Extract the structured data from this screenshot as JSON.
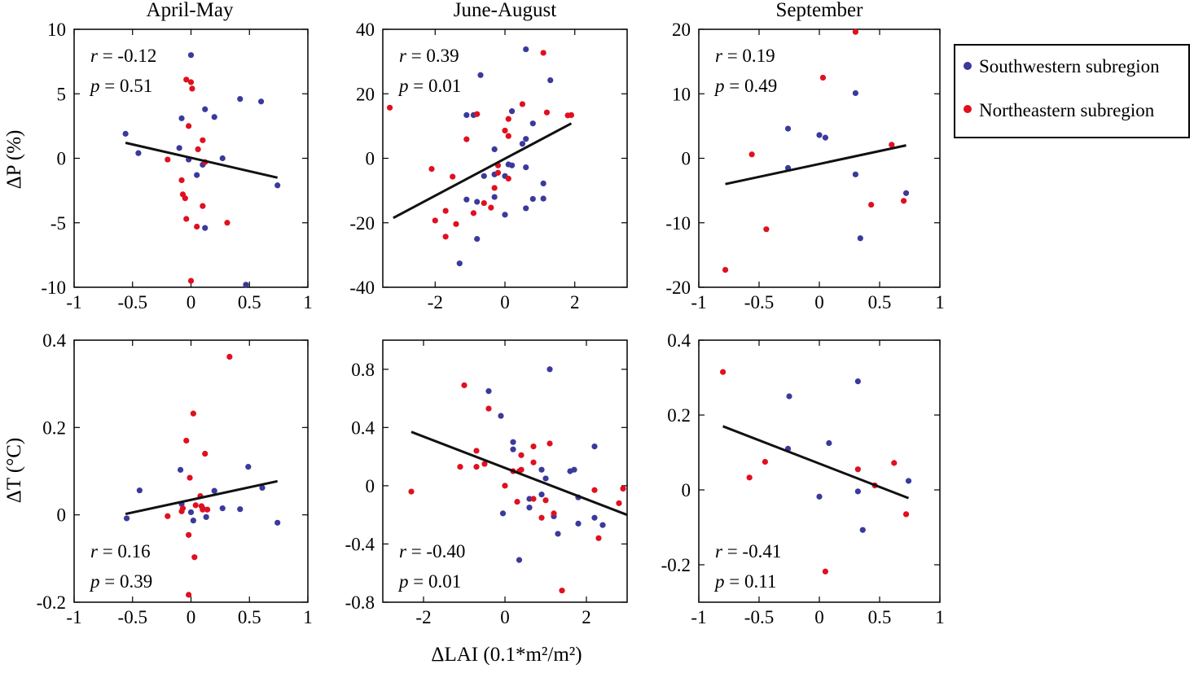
{
  "colors": {
    "southwest": "#3a3a9c",
    "northeast": "#e0101e",
    "fit": "#111111"
  },
  "legend": {
    "entries": [
      "Southwestern subregion",
      "Northeastern  subregion"
    ],
    "placement": "right"
  },
  "titles": {
    "col1": "April-May",
    "col2": "June-August",
    "col3": "September"
  },
  "ylabels": {
    "top": "ΔP (%)",
    "bottom": "ΔT (°C)"
  },
  "xlabel": "ΔLAI (0.1*m²/m²)",
  "chart_data": [
    {
      "type": "scatter",
      "title": "April-May",
      "ylabel": "ΔP (%)",
      "xlim": [
        -1,
        1
      ],
      "ylim": [
        -10,
        10
      ],
      "xticks": [
        -1,
        -0.5,
        0,
        0.5,
        1
      ],
      "xtick_labels": [
        "-1",
        "-0.5",
        "0",
        "0.5",
        "1"
      ],
      "yticks": [
        -10,
        -5,
        0,
        5,
        10
      ],
      "ytick_labels": [
        "-10",
        "-5",
        "0",
        "5",
        "10"
      ],
      "r_text": "r",
      "r_value": "= -0.12",
      "p_text": "p",
      "p_value": "= 0.51",
      "stats_pos": "top",
      "fit": [
        [
          -0.56,
          1.2
        ],
        [
          0.74,
          -1.5
        ]
      ],
      "series": [
        {
          "name": "Southwestern subregion",
          "color": "#3a3a9c",
          "points": [
            [
              -0.56,
              1.9
            ],
            [
              -0.45,
              0.4
            ],
            [
              -0.1,
              0.8
            ],
            [
              -0.08,
              3.1
            ],
            [
              0.0,
              8.0
            ],
            [
              -0.02,
              -0.1
            ],
            [
              0.05,
              -1.3
            ],
            [
              0.1,
              -0.5
            ],
            [
              0.12,
              3.8
            ],
            [
              0.2,
              3.2
            ],
            [
              0.27,
              0.0
            ],
            [
              0.42,
              4.6
            ],
            [
              0.6,
              4.4
            ],
            [
              0.12,
              -5.4
            ],
            [
              0.47,
              -9.8
            ],
            [
              0.74,
              -2.1
            ]
          ]
        },
        {
          "name": "Northeastern  subregion",
          "color": "#e0101e",
          "points": [
            [
              -0.2,
              -0.1
            ],
            [
              -0.04,
              6.1
            ],
            [
              0.0,
              5.9
            ],
            [
              0.01,
              5.4
            ],
            [
              -0.02,
              2.5
            ],
            [
              0.1,
              1.4
            ],
            [
              0.06,
              0.7
            ],
            [
              0.12,
              -0.3
            ],
            [
              -0.08,
              -1.7
            ],
            [
              -0.07,
              -2.8
            ],
            [
              -0.05,
              -3.1
            ],
            [
              0.1,
              -3.7
            ],
            [
              -0.04,
              -4.7
            ],
            [
              0.05,
              -5.3
            ],
            [
              0.31,
              -5.0
            ],
            [
              0.0,
              -9.5
            ]
          ]
        }
      ]
    },
    {
      "type": "scatter",
      "title": "June-August",
      "xlim": [
        -3.5,
        3.5
      ],
      "ylim": [
        -40,
        40
      ],
      "xticks": [
        -2,
        0,
        2
      ],
      "xtick_labels": [
        "-2",
        "0",
        "2"
      ],
      "yticks": [
        -40,
        -20,
        0,
        20,
        40
      ],
      "ytick_labels": [
        "-40",
        "-20",
        "0",
        "20",
        "40"
      ],
      "r_text": "r",
      "r_value": "= 0.39",
      "p_text": "p",
      "p_value": "= 0.01",
      "stats_pos": "top",
      "fit": [
        [
          -3.2,
          -18.5
        ],
        [
          1.9,
          10.8
        ]
      ],
      "series": [
        {
          "name": "Southwestern subregion",
          "color": "#3a3a9c",
          "points": [
            [
              -0.7,
              25.8
            ],
            [
              0.6,
              33.8
            ],
            [
              1.3,
              24.2
            ],
            [
              -0.9,
              13.4
            ],
            [
              -1.1,
              13.4
            ],
            [
              0.2,
              14.6
            ],
            [
              0.8,
              10.8
            ],
            [
              0.6,
              6.0
            ],
            [
              0.5,
              4.5
            ],
            [
              -0.3,
              2.8
            ],
            [
              0.2,
              -2.2
            ],
            [
              0.1,
              -1.9
            ],
            [
              0.0,
              -5.5
            ],
            [
              0.6,
              -2.8
            ],
            [
              -0.3,
              -5.0
            ],
            [
              -0.6,
              -5.5
            ],
            [
              -0.3,
              -12.0
            ],
            [
              -1.1,
              -12.8
            ],
            [
              -0.8,
              -13.5
            ],
            [
              0.0,
              -17.5
            ],
            [
              0.6,
              -15.5
            ],
            [
              0.8,
              -12.6
            ],
            [
              1.1,
              -12.5
            ],
            [
              1.1,
              -7.8
            ],
            [
              -0.8,
              -25.0
            ],
            [
              -1.3,
              -32.6
            ]
          ]
        },
        {
          "name": "Northeastern  subregion",
          "color": "#e0101e",
          "points": [
            [
              -3.3,
              15.7
            ],
            [
              1.1,
              32.7
            ],
            [
              0.5,
              16.8
            ],
            [
              1.2,
              14.2
            ],
            [
              1.8,
              13.3
            ],
            [
              1.9,
              13.4
            ],
            [
              -0.8,
              13.7
            ],
            [
              0.1,
              12.2
            ],
            [
              0.1,
              6.9
            ],
            [
              0.0,
              8.6
            ],
            [
              -1.1,
              5.9
            ],
            [
              -2.1,
              -3.3
            ],
            [
              -1.5,
              -5.7
            ],
            [
              -0.2,
              -2.2
            ],
            [
              -0.2,
              -4.5
            ],
            [
              0.1,
              -6.3
            ],
            [
              -0.3,
              -9.2
            ],
            [
              -0.6,
              -13.9
            ],
            [
              -0.4,
              -15.3
            ],
            [
              -0.9,
              -17.0
            ],
            [
              -1.4,
              -20.4
            ],
            [
              -1.7,
              -16.3
            ],
            [
              -2.0,
              -19.3
            ],
            [
              -1.7,
              -24.3
            ]
          ]
        }
      ]
    },
    {
      "type": "scatter",
      "title": "September",
      "xlim": [
        -1,
        1
      ],
      "ylim": [
        -20,
        20
      ],
      "xticks": [
        -1,
        -0.5,
        0,
        0.5,
        1
      ],
      "xtick_labels": [
        "-1",
        "-0.5",
        "0",
        "0.5",
        "1"
      ],
      "yticks": [
        -20,
        -10,
        0,
        10,
        20
      ],
      "ytick_labels": [
        "-20",
        "-10",
        "0",
        "10",
        "20"
      ],
      "r_text": "r",
      "r_value": "= 0.19",
      "p_text": "p",
      "p_value": "= 0.49",
      "stats_pos": "top",
      "fit": [
        [
          -0.78,
          -4.0
        ],
        [
          0.72,
          2.0
        ]
      ],
      "series": [
        {
          "name": "Southwestern subregion",
          "color": "#3a3a9c",
          "points": [
            [
              -0.26,
              4.6
            ],
            [
              0.0,
              3.6
            ],
            [
              0.05,
              3.2
            ],
            [
              0.3,
              10.1
            ],
            [
              -0.26,
              -1.5
            ],
            [
              0.3,
              -2.5
            ],
            [
              0.34,
              -12.4
            ],
            [
              0.72,
              -5.4
            ]
          ]
        },
        {
          "name": "Northeastern  subregion",
          "color": "#e0101e",
          "points": [
            [
              -0.78,
              -17.3
            ],
            [
              -0.56,
              0.6
            ],
            [
              -0.44,
              -11.0
            ],
            [
              0.03,
              12.5
            ],
            [
              0.3,
              19.6
            ],
            [
              0.43,
              -7.2
            ],
            [
              0.6,
              2.1
            ],
            [
              0.7,
              -6.6
            ]
          ]
        }
      ]
    },
    {
      "type": "scatter",
      "ylabel": "ΔT (°C)",
      "xlim": [
        -1,
        1
      ],
      "ylim": [
        -0.2,
        0.4
      ],
      "xticks": [
        -1,
        -0.5,
        0,
        0.5,
        1
      ],
      "xtick_labels": [
        "-1",
        "-0.5",
        "0",
        "0.5",
        "1"
      ],
      "yticks": [
        -0.2,
        0,
        0.2,
        0.4
      ],
      "ytick_labels": [
        "-0.2",
        "0",
        "0.2",
        "0.4"
      ],
      "r_text": "r",
      "r_value": "= 0.16",
      "p_text": "p",
      "p_value": "= 0.39",
      "stats_pos": "bottom",
      "fit": [
        [
          -0.56,
          0.002
        ],
        [
          0.74,
          0.077
        ]
      ],
      "series": [
        {
          "name": "Southwestern subregion",
          "color": "#3a3a9c",
          "points": [
            [
              -0.55,
              -0.008
            ],
            [
              -0.44,
              0.056
            ],
            [
              -0.09,
              0.103
            ],
            [
              -0.08,
              0.025
            ],
            [
              0.0,
              0.006
            ],
            [
              0.02,
              -0.013
            ],
            [
              0.1,
              0.015
            ],
            [
              0.13,
              -0.005
            ],
            [
              0.2,
              0.055
            ],
            [
              0.27,
              0.015
            ],
            [
              0.42,
              0.013
            ],
            [
              0.49,
              0.11
            ],
            [
              0.61,
              0.062
            ],
            [
              0.74,
              -0.018
            ]
          ]
        },
        {
          "name": "Northeastern  subregion",
          "color": "#e0101e",
          "points": [
            [
              0.33,
              0.362
            ],
            [
              0.02,
              0.232
            ],
            [
              -0.04,
              0.17
            ],
            [
              0.12,
              0.14
            ],
            [
              -0.01,
              0.085
            ],
            [
              0.08,
              0.043
            ],
            [
              0.04,
              0.022
            ],
            [
              0.09,
              0.02
            ],
            [
              0.1,
              0.012
            ],
            [
              0.14,
              0.012
            ],
            [
              -0.08,
              0.008
            ],
            [
              -0.2,
              -0.003
            ],
            [
              -0.07,
              0.015
            ],
            [
              -0.02,
              -0.046
            ],
            [
              0.03,
              -0.097
            ],
            [
              -0.02,
              -0.183
            ]
          ]
        }
      ]
    },
    {
      "type": "scatter",
      "xlim": [
        -3,
        3
      ],
      "ylim": [
        -0.8,
        1.0
      ],
      "xticks": [
        -2,
        0,
        2
      ],
      "xtick_labels": [
        "-2",
        "0",
        "2"
      ],
      "yticks": [
        -0.8,
        -0.4,
        0,
        0.4,
        0.8
      ],
      "ytick_labels": [
        "-0.8",
        "-0.4",
        "0",
        "0.4",
        "0.8"
      ],
      "r_text": "r",
      "r_value": "= -0.40",
      "p_text": "p",
      "p_value": "= 0.01",
      "stats_pos": "bottom",
      "fit": [
        [
          -2.3,
          0.37
        ],
        [
          3.0,
          -0.2
        ]
      ],
      "series": [
        {
          "name": "Southwestern subregion",
          "color": "#3a3a9c",
          "points": [
            [
              1.1,
              0.8
            ],
            [
              -0.4,
              0.65
            ],
            [
              -0.1,
              0.48
            ],
            [
              0.2,
              0.3
            ],
            [
              0.2,
              0.25
            ],
            [
              0.9,
              0.11
            ],
            [
              1.6,
              0.1
            ],
            [
              1.0,
              0.05
            ],
            [
              1.7,
              0.11
            ],
            [
              2.2,
              0.27
            ],
            [
              1.8,
              -0.08
            ],
            [
              0.9,
              -0.06
            ],
            [
              0.6,
              -0.09
            ],
            [
              0.6,
              -0.15
            ],
            [
              1.2,
              -0.21
            ],
            [
              -0.05,
              -0.19
            ],
            [
              1.8,
              -0.26
            ],
            [
              2.2,
              -0.22
            ],
            [
              2.4,
              -0.27
            ],
            [
              1.3,
              -0.33
            ],
            [
              0.35,
              -0.51
            ]
          ]
        },
        {
          "name": "Northeastern  subregion",
          "color": "#e0101e",
          "points": [
            [
              -1.0,
              0.69
            ],
            [
              -0.4,
              0.53
            ],
            [
              1.1,
              0.29
            ],
            [
              0.7,
              0.27
            ],
            [
              0.4,
              0.21
            ],
            [
              -0.7,
              0.24
            ],
            [
              -0.5,
              0.15
            ],
            [
              -0.7,
              0.13
            ],
            [
              -1.1,
              0.13
            ],
            [
              0.7,
              0.16
            ],
            [
              0.2,
              0.1
            ],
            [
              0.4,
              0.11
            ],
            [
              0.35,
              0.1
            ],
            [
              0.0,
              0.0
            ],
            [
              -2.3,
              -0.04
            ],
            [
              2.2,
              -0.03
            ],
            [
              2.9,
              -0.02
            ],
            [
              0.7,
              -0.09
            ],
            [
              1.0,
              -0.1
            ],
            [
              0.3,
              -0.11
            ],
            [
              1.2,
              -0.19
            ],
            [
              0.9,
              -0.22
            ],
            [
              2.8,
              -0.12
            ],
            [
              2.3,
              -0.36
            ],
            [
              1.4,
              -0.72
            ]
          ]
        }
      ]
    },
    {
      "type": "scatter",
      "xlim": [
        -1,
        1
      ],
      "ylim": [
        -0.3,
        0.4
      ],
      "xticks": [
        -1,
        -0.5,
        0,
        0.5,
        1
      ],
      "xtick_labels": [
        "-1",
        "-0.5",
        "0",
        "0.5",
        "1"
      ],
      "yticks": [
        -0.2,
        0,
        0.2,
        0.4
      ],
      "ytick_labels": [
        "-0.2",
        "0",
        "0.2",
        "0.4"
      ],
      "r_text": "r",
      "r_value": "= -0.41",
      "p_text": "p",
      "p_value": "= 0.11",
      "stats_pos": "bottom",
      "fit": [
        [
          -0.8,
          0.17
        ],
        [
          0.74,
          -0.022
        ]
      ],
      "series": [
        {
          "name": "Southwestern subregion",
          "color": "#3a3a9c",
          "points": [
            [
              -0.25,
              0.25
            ],
            [
              0.32,
              0.29
            ],
            [
              -0.26,
              0.11
            ],
            [
              0.08,
              0.125
            ],
            [
              0.0,
              -0.018
            ],
            [
              0.32,
              -0.004
            ],
            [
              0.36,
              -0.107
            ],
            [
              0.74,
              0.024
            ]
          ]
        },
        {
          "name": "Northeastern  subregion",
          "color": "#e0101e",
          "points": [
            [
              -0.8,
              0.315
            ],
            [
              -0.58,
              0.033
            ],
            [
              -0.45,
              0.075
            ],
            [
              0.32,
              0.055
            ],
            [
              0.46,
              0.012
            ],
            [
              0.62,
              0.072
            ],
            [
              0.72,
              -0.065
            ],
            [
              0.05,
              -0.218
            ]
          ]
        }
      ]
    }
  ]
}
